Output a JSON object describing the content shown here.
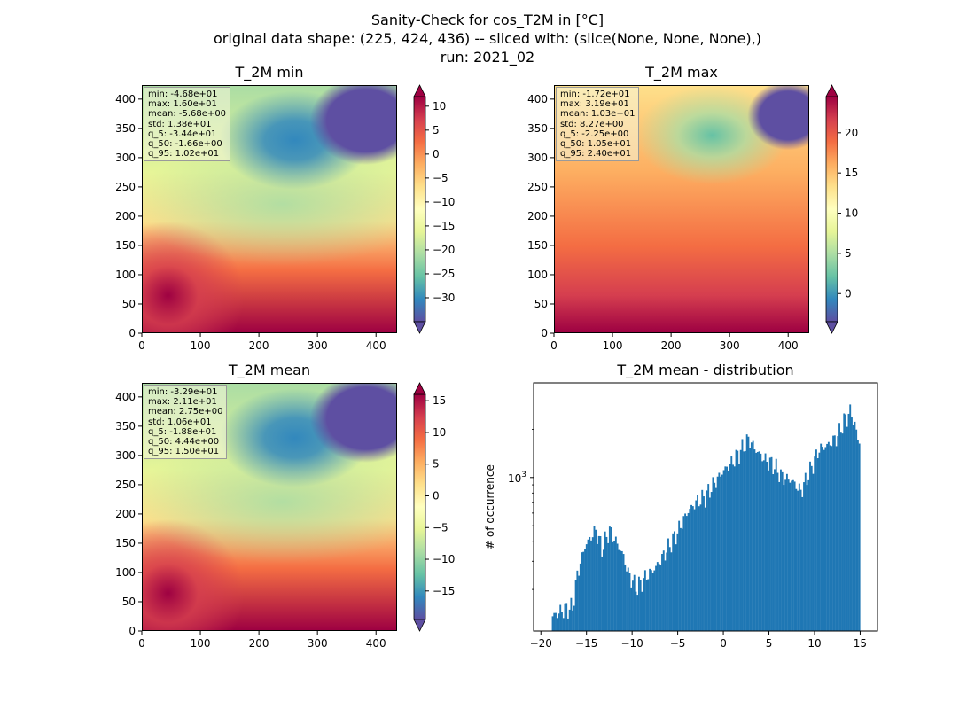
{
  "figure": {
    "title_lines": [
      "Sanity-Check for cos_T2M in [°C]",
      "original data shape: (225, 424, 436) -- sliced with: (slice(None, None, None),)",
      "run: 2021_02"
    ]
  },
  "colormap": {
    "name": "Spectral_r",
    "stops": [
      "#5e4fa2",
      "#3288bd",
      "#66c2a5",
      "#abdda4",
      "#e6f598",
      "#ffffbf",
      "#fee08b",
      "#fdae61",
      "#f46d43",
      "#d53e4f",
      "#9e0142"
    ]
  },
  "chart_data": [
    {
      "type": "heatmap",
      "title": "T_2M min",
      "xlim": [
        0,
        436
      ],
      "ylim": [
        0,
        424
      ],
      "xticks": [
        "0",
        "100",
        "200",
        "300",
        "400"
      ],
      "yticks": [
        "0",
        "50",
        "100",
        "150",
        "200",
        "250",
        "300",
        "350",
        "400"
      ],
      "colorbar": {
        "range": [
          -35,
          12
        ],
        "ticks": [
          "10",
          "5",
          "0",
          "−5",
          "−10",
          "−15",
          "−20",
          "−25",
          "−30"
        ],
        "extend": "both"
      },
      "stats": [
        "min: -4.68e+01",
        "max: 1.60e+01",
        "mean: -5.68e+00",
        "std: 1.38e+01",
        "q_5: -3.44e+01",
        "q_50: -1.66e+00",
        "q_95: 1.02e+01"
      ]
    },
    {
      "type": "heatmap",
      "title": "T_2M max",
      "xlim": [
        0,
        436
      ],
      "ylim": [
        0,
        424
      ],
      "xticks": [
        "0",
        "100",
        "200",
        "300",
        "400"
      ],
      "yticks": [
        "0",
        "50",
        "100",
        "150",
        "200",
        "250",
        "300",
        "350",
        "400"
      ],
      "colorbar": {
        "range": [
          -3.5,
          24.5
        ],
        "ticks": [
          "20",
          "15",
          "10",
          "5",
          "0"
        ],
        "extend": "both"
      },
      "stats": [
        "min: -1.72e+01",
        "max: 3.19e+01",
        "mean: 1.03e+01",
        "std: 8.27e+00",
        "q_5: -2.25e+00",
        "q_50: 1.05e+01",
        "q_95: 2.40e+01"
      ]
    },
    {
      "type": "heatmap",
      "title": "T_2M mean",
      "xlim": [
        0,
        436
      ],
      "ylim": [
        0,
        424
      ],
      "xticks": [
        "0",
        "100",
        "200",
        "300",
        "400"
      ],
      "yticks": [
        "0",
        "50",
        "100",
        "150",
        "200",
        "250",
        "300",
        "350",
        "400"
      ],
      "colorbar": {
        "range": [
          -19.5,
          16
        ],
        "ticks": [
          "15",
          "10",
          "5",
          "0",
          "−5",
          "−10",
          "−15"
        ],
        "extend": "both"
      },
      "stats": [
        "min: -3.29e+01",
        "max: 2.11e+01",
        "mean: 2.75e+00",
        "std: 1.06e+01",
        "q_5: -1.88e+01",
        "q_50: 4.44e+00",
        "q_95: 1.50e+01"
      ]
    },
    {
      "type": "bar",
      "title": "T_2M mean - distribution",
      "ylabel": "# of occurrence",
      "yscale": "log",
      "xlim": [
        -20.8,
        16.9
      ],
      "ylim": [
        110,
        3900
      ],
      "xticks": [
        "−20",
        "−15",
        "−10",
        "−5",
        "0",
        "5",
        "10",
        "15"
      ],
      "ytick_label": "10^3",
      "bar_color": "#1f77b4",
      "keypoints": [
        [
          -18.8,
          135
        ],
        [
          -17.5,
          150
        ],
        [
          -16.5,
          155
        ],
        [
          -16.0,
          250
        ],
        [
          -15.2,
          370
        ],
        [
          -14.0,
          470
        ],
        [
          -13.3,
          360
        ],
        [
          -12.5,
          470
        ],
        [
          -11.8,
          400
        ],
        [
          -11.0,
          330
        ],
        [
          -10.4,
          250
        ],
        [
          -9.5,
          205
        ],
        [
          -8.5,
          240
        ],
        [
          -7.5,
          270
        ],
        [
          -6.5,
          330
        ],
        [
          -5.0,
          460
        ],
        [
          -4.0,
          600
        ],
        [
          -3.0,
          700
        ],
        [
          -2.0,
          760
        ],
        [
          -1.0,
          920
        ],
        [
          0.0,
          1100
        ],
        [
          1.0,
          1250
        ],
        [
          2.0,
          1500
        ],
        [
          2.8,
          1750
        ],
        [
          3.5,
          1500
        ],
        [
          4.5,
          1300
        ],
        [
          5.5,
          1200
        ],
        [
          6.5,
          1000
        ],
        [
          7.5,
          960
        ],
        [
          8.5,
          820
        ],
        [
          9.5,
          1100
        ],
        [
          10.5,
          1500
        ],
        [
          11.5,
          1600
        ],
        [
          12.5,
          1800
        ],
        [
          13.3,
          2300
        ],
        [
          14.0,
          2600
        ],
        [
          14.5,
          2000
        ],
        [
          15.0,
          1600
        ]
      ]
    }
  ]
}
